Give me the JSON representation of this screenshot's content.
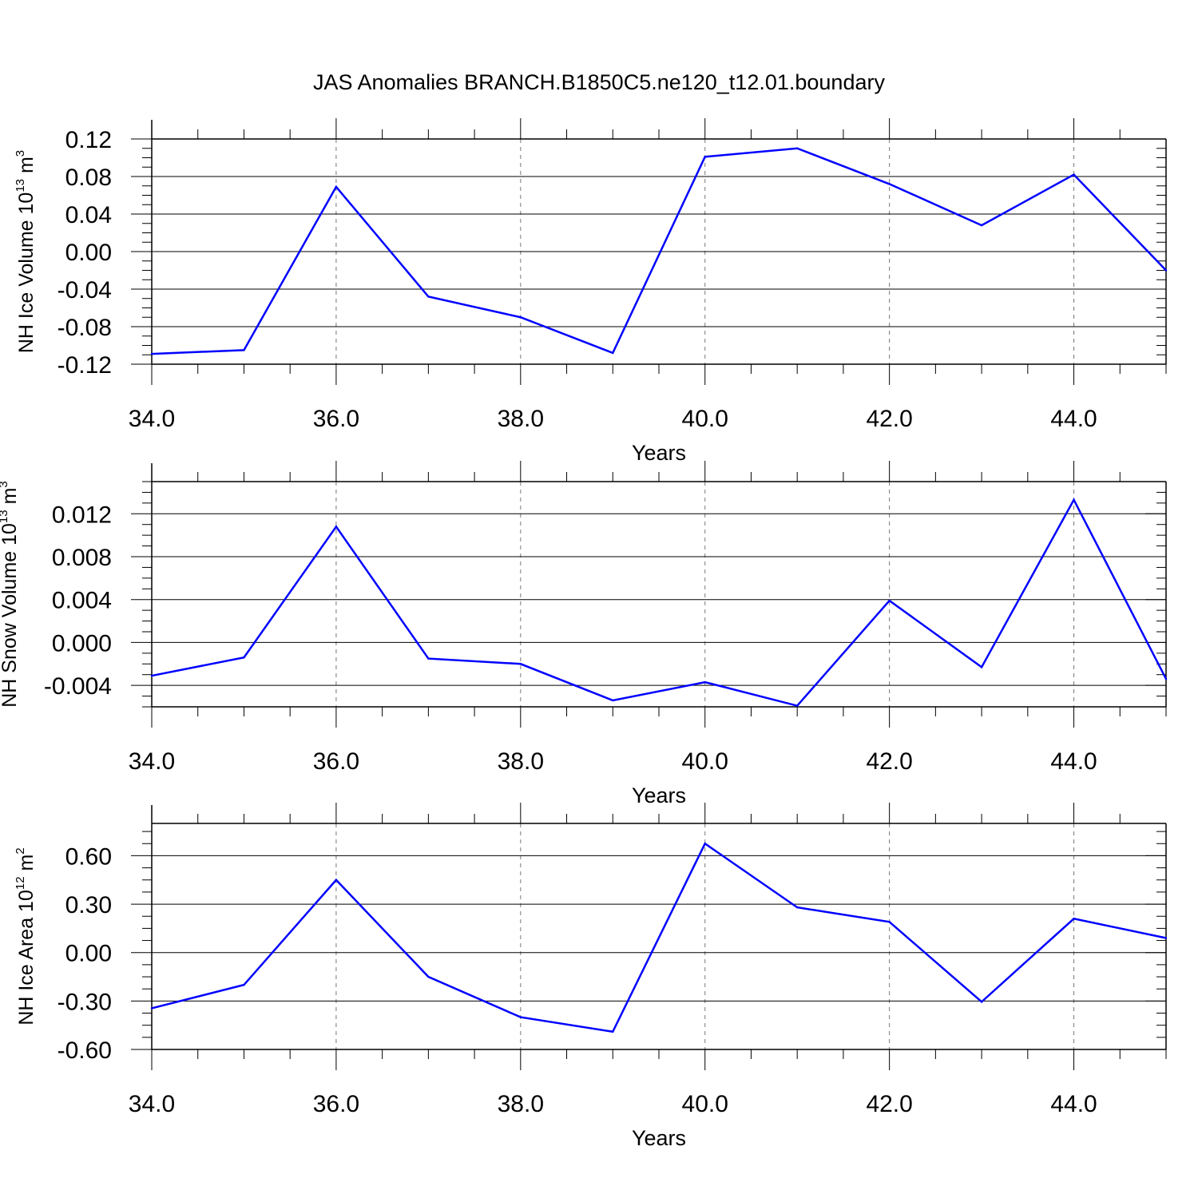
{
  "title": "JAS Anomalies BRANCH.B1850C5.ne120_t12.01.boundary",
  "line_color": "#0000ff",
  "chart_data": [
    {
      "type": "line",
      "ylabel": {
        "prefix": "NH Ice Volume 10",
        "exp": "13",
        "unit": " m",
        "unit_exp": "3"
      },
      "xlabel": "Years",
      "xlim": [
        34,
        45
      ],
      "ylim": [
        -0.12,
        0.12
      ],
      "xticks": [
        "34.0",
        "36.0",
        "38.0",
        "40.0",
        "42.0",
        "44.0"
      ],
      "xtick_values": [
        34,
        36,
        38,
        40,
        42,
        44
      ],
      "yticks": [
        "0.12",
        "0.08",
        "0.04",
        "0.00",
        "-0.04",
        "-0.08",
        "-0.12"
      ],
      "ytick_values": [
        0.12,
        0.08,
        0.04,
        0.0,
        -0.04,
        -0.08,
        -0.12
      ],
      "x": [
        34,
        35,
        36,
        37,
        38,
        39,
        40,
        41,
        42,
        43,
        44,
        45
      ],
      "y": [
        -0.109,
        -0.105,
        0.069,
        -0.048,
        -0.07,
        -0.108,
        0.101,
        0.11,
        0.072,
        0.028,
        0.082,
        -0.02
      ]
    },
    {
      "type": "line",
      "ylabel": {
        "prefix": "NH Snow Volume 10",
        "exp": "13",
        "unit": " m",
        "unit_exp": "3"
      },
      "xlabel": "Years",
      "xlim": [
        34,
        45
      ],
      "ylim": [
        -0.006,
        0.015
      ],
      "xticks": [
        "34.0",
        "36.0",
        "38.0",
        "40.0",
        "42.0",
        "44.0"
      ],
      "xtick_values": [
        34,
        36,
        38,
        40,
        42,
        44
      ],
      "yticks": [
        "0.012",
        "0.008",
        "0.004",
        "0.000",
        "-0.004"
      ],
      "ytick_values": [
        0.012,
        0.008,
        0.004,
        0.0,
        -0.004
      ],
      "x": [
        34,
        35,
        36,
        37,
        38,
        39,
        40,
        41,
        42,
        43,
        44,
        45
      ],
      "y": [
        -0.0031,
        -0.0014,
        0.0108,
        -0.0015,
        -0.002,
        -0.0054,
        -0.0037,
        -0.0059,
        0.0039,
        -0.0023,
        0.0133,
        -0.0034
      ]
    },
    {
      "type": "line",
      "ylabel": {
        "prefix": "NH Ice Area 10",
        "exp": "12",
        "unit": " m",
        "unit_exp": "2"
      },
      "xlabel": "Years",
      "xlim": [
        34,
        45
      ],
      "ylim": [
        -0.6,
        0.8
      ],
      "xticks": [
        "34.0",
        "36.0",
        "38.0",
        "40.0",
        "42.0",
        "44.0"
      ],
      "xtick_values": [
        34,
        36,
        38,
        40,
        42,
        44
      ],
      "yticks": [
        "0.60",
        "0.30",
        "0.00",
        "-0.30",
        "-0.60"
      ],
      "ytick_values": [
        0.6,
        0.3,
        0.0,
        -0.3,
        -0.6
      ],
      "x": [
        34,
        35,
        36,
        37,
        38,
        39,
        40,
        41,
        42,
        43,
        44,
        45
      ],
      "y": [
        -0.345,
        -0.2,
        0.45,
        -0.15,
        -0.4,
        -0.49,
        0.675,
        0.28,
        0.19,
        -0.305,
        0.21,
        0.09
      ]
    }
  ]
}
